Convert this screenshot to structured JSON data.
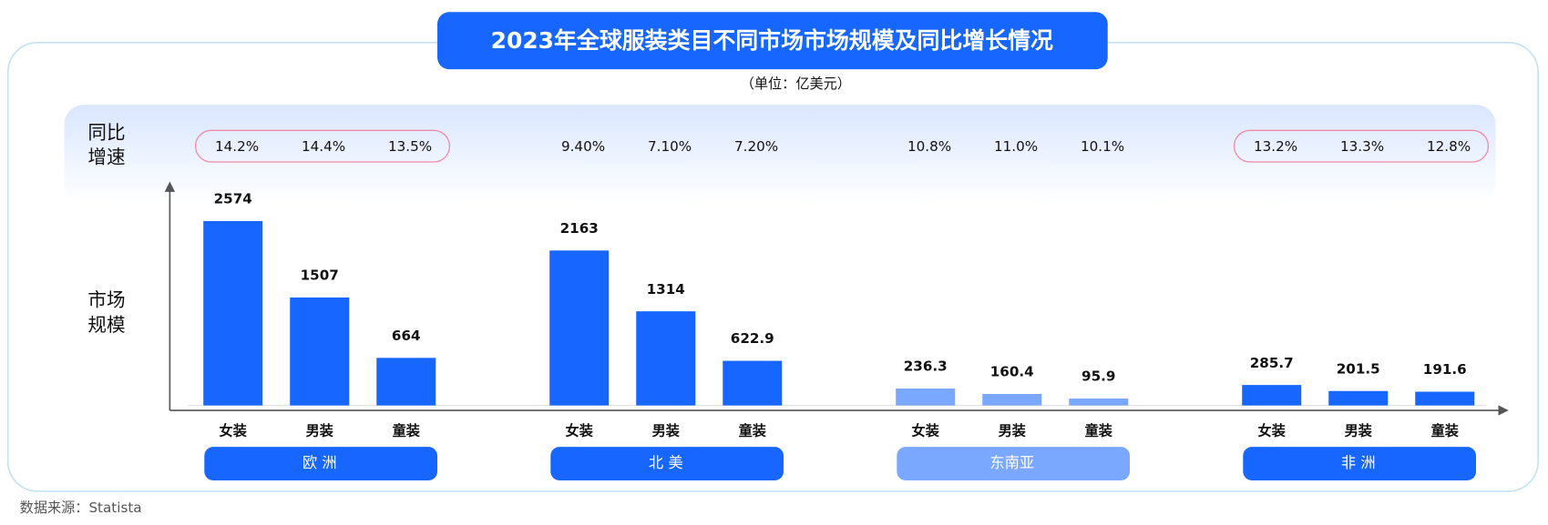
{
  "chart_data": {
    "type": "grouped-bar",
    "title": "2023年全球服装类目不同市场市场规模及同比增长情况",
    "subtitle": "（单位：亿美元）",
    "growth_row_label": [
      "同比",
      "增速"
    ],
    "value_row_label": [
      "市场",
      "规模"
    ],
    "ylim": [
      0,
      3000
    ],
    "groups": [
      {
        "name": "欧 洲",
        "color": "#1766ff",
        "highlight": true,
        "categories": [
          "女装",
          "男装",
          "童装"
        ],
        "values": [
          2574,
          1507,
          664
        ],
        "growth": [
          14.2,
          14.4,
          13.5
        ],
        "growth_labels": [
          "14.2%",
          "14.4%",
          "13.5%"
        ]
      },
      {
        "name": "北 美",
        "color": "#1766ff",
        "highlight": false,
        "categories": [
          "女装",
          "男装",
          "童装"
        ],
        "values": [
          2163,
          1314,
          622.9
        ],
        "growth": [
          9.4,
          7.1,
          7.2
        ],
        "growth_labels": [
          "9.40%",
          "7.10%",
          "7.20%"
        ]
      },
      {
        "name": "东南亚",
        "color": "#7aa7ff",
        "highlight": false,
        "categories": [
          "女装",
          "男装",
          "童装"
        ],
        "values": [
          236.3,
          160.4,
          95.9
        ],
        "growth": [
          10.8,
          11.0,
          10.1
        ],
        "growth_labels": [
          "10.8%",
          "11.0%",
          "10.1%"
        ]
      },
      {
        "name": "非 洲",
        "color": "#1766ff",
        "highlight": true,
        "categories": [
          "女装",
          "男装",
          "童装"
        ],
        "values": [
          285.7,
          201.5,
          191.6
        ],
        "growth": [
          13.2,
          13.3,
          12.8
        ],
        "growth_labels": [
          "13.2%",
          "13.3%",
          "12.8%"
        ]
      }
    ],
    "source": "数据来源：Statista"
  }
}
